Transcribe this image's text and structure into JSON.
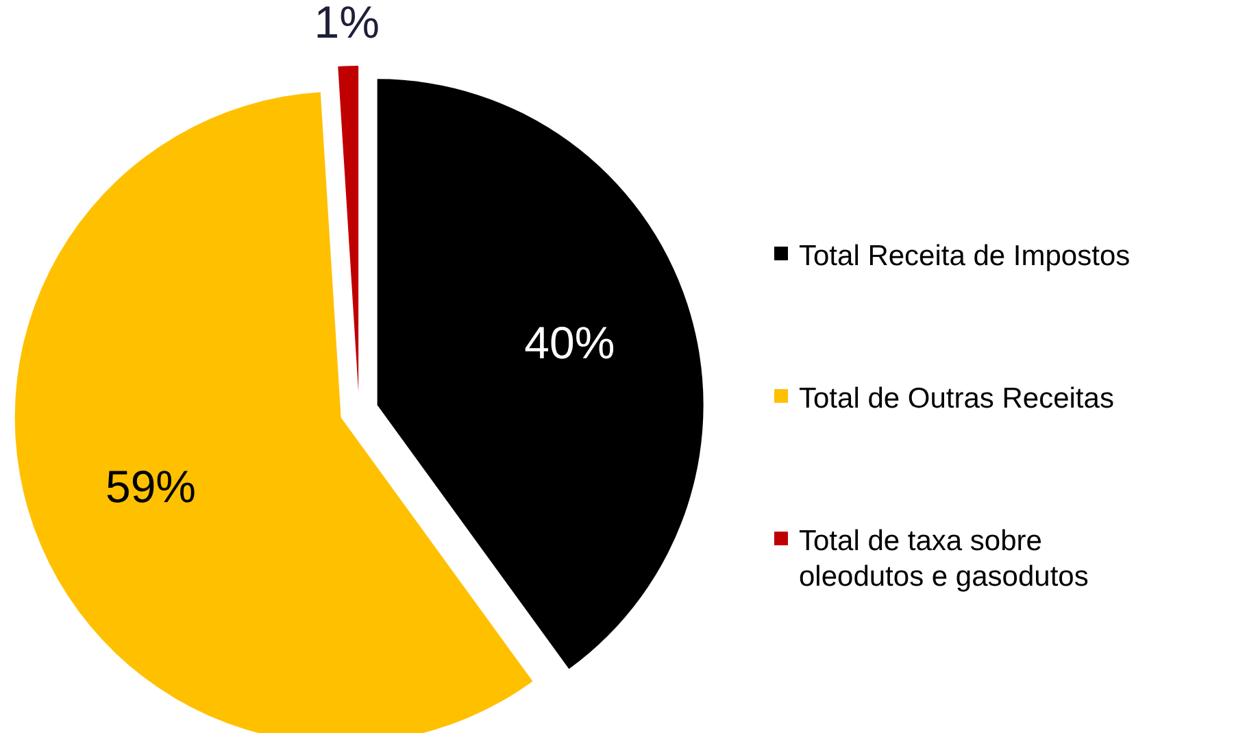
{
  "chart_data": {
    "type": "pie",
    "categories": [
      "Total Receita de Impostos",
      "Total de Outras Receitas",
      "Total de taxa sobre oleodutos e gasodutos"
    ],
    "values": [
      40,
      59,
      1
    ],
    "colors": [
      "#000000",
      "#ffc000",
      "#c00000"
    ],
    "value_labels": [
      "40%",
      "59%",
      "1%"
    ],
    "legend": "right"
  }
}
